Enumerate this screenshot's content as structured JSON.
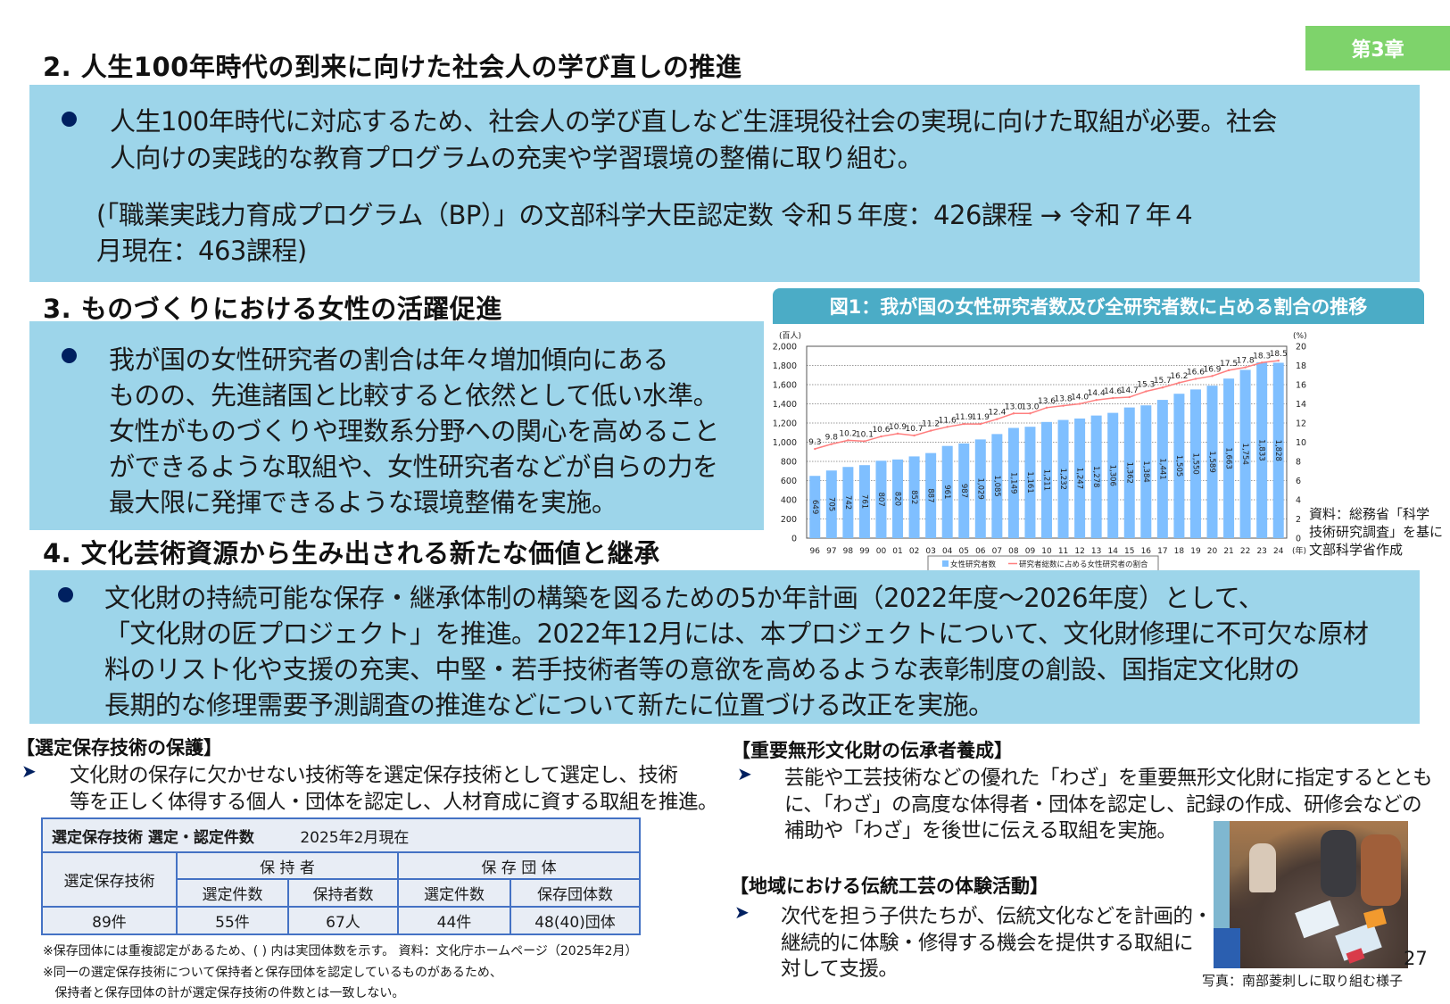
{
  "chapter_tab": "第3章",
  "section2": {
    "title": "2.  人生100年時代の到来に向けた社会人の学び直しの推進",
    "lines": [
      "人生100年時代に対応するため、社会人の学び直しなど生涯現役社会の実現に向けた取組が必要。社会",
      "人向けの実践的な教育プログラムの充実や学習環境の整備に取り組む。",
      "(「職業実践力育成プログラム（BP）」の文部科学大臣認定数   令和５年度：426課程 → 令和７年４",
      "月現在：463課程)"
    ]
  },
  "section3": {
    "title": "3.  ものづくりにおける女性の活躍促進",
    "lines": [
      "我が国の女性研究者の割合は年々増加傾向にある",
      "ものの、先進諸国と比較すると依然として低い水準。",
      "女性がものづくりや理数系分野への関心を高めること",
      "ができるような取組や、女性研究者などが自らの力を",
      "最大限に発揮できるような環境整備を実施。"
    ]
  },
  "figure": {
    "source_lines": [
      "資料：総務省「科学",
      "技術研究調査」を基に",
      "文部科学省作成"
    ]
  },
  "chart_data": {
    "type": "bar+line",
    "title": "図1：我が国の女性研究者数及び全研究者数に占める割合の推移",
    "categories": [
      "96",
      "97",
      "98",
      "99",
      "00",
      "01",
      "02",
      "03",
      "04",
      "05",
      "06",
      "07",
      "08",
      "09",
      "10",
      "11",
      "12",
      "13",
      "14",
      "15",
      "16",
      "17",
      "18",
      "19",
      "20",
      "21",
      "22",
      "23",
      "24"
    ],
    "xlabel": "(年)",
    "ylabel": "(百人)",
    "y2label": "(%)",
    "ylim": [
      0,
      2000
    ],
    "y2lim": [
      0,
      20
    ],
    "yticks": [
      "0",
      "200",
      "400",
      "600",
      "800",
      "1,000",
      "1,200",
      "1,400",
      "1,600",
      "1,800",
      "2,000"
    ],
    "y2ticks": [
      "0",
      "2",
      "4",
      "6",
      "8",
      "10",
      "12",
      "14",
      "16",
      "18",
      "20"
    ],
    "grid": true,
    "legend": "bottom",
    "series": [
      {
        "name": "女性研究者数",
        "type": "bar",
        "axis": "left",
        "color": "#7fbfff",
        "values": [
          649,
          705,
          742,
          761,
          807,
          820,
          852,
          887,
          961,
          987,
          1029,
          1085,
          1149,
          1161,
          1211,
          1232,
          1247,
          1278,
          1306,
          1362,
          1384,
          1441,
          1505,
          1550,
          1589,
          1663,
          1754,
          1833,
          1828
        ],
        "labels": [
          "649",
          "705",
          "742",
          "761",
          "807",
          "820",
          "852",
          "887",
          "961",
          "987",
          "1,029",
          "1,085",
          "1,149",
          "1,161",
          "1,211",
          "1,232",
          "1,247",
          "1,278",
          "1,306",
          "1,362",
          "1,384",
          "1,441",
          "1,505",
          "1,550",
          "1,589",
          "1,663",
          "1,754",
          "1,833",
          "1,828"
        ]
      },
      {
        "name": "研究者総数に占める女性研究者の割合",
        "type": "line",
        "axis": "right",
        "color": "#ff7f7f",
        "values": [
          9.3,
          9.8,
          10.2,
          10.1,
          10.6,
          10.9,
          10.7,
          11.2,
          11.6,
          11.9,
          11.9,
          12.4,
          13.0,
          13.0,
          13.6,
          13.8,
          14.0,
          14.4,
          14.6,
          14.7,
          15.3,
          15.7,
          16.2,
          16.6,
          16.9,
          17.5,
          17.8,
          18.3,
          18.5
        ]
      }
    ]
  },
  "section4": {
    "title": "4.  文化芸術資源から生み出される新たな価値と継承",
    "lines": [
      "文化財の持続可能な保存・継承体制の構築を図るための5か年計画（2022年度～2026年度）として、",
      "「文化財の匠プロジェクト」を推進。2022年12月には、本プロジェクトについて、文化財修理に不可欠な原材",
      "料のリスト化や支援の充実、中堅・若手技術者等の意欲を高めるような表彰制度の創設、国指定文化財の",
      "長期的な修理需要予測調査の推進などについて新たに位置づける改正を実施。"
    ]
  },
  "selected_tech": {
    "heading": "【選定保存技術の保護】",
    "lines": [
      "文化財の保存に欠かせない技術等を選定保存技術として選定し、技術",
      "等を正しく体得する個人・団体を認定し、人材育成に資する取組を推進。"
    ],
    "table": {
      "caption": "選定保存技術  選定・認定件数",
      "date": "2025年2月現在",
      "row_header": "選定保存技術",
      "group1": "保 持 者",
      "group2": "保 存 団 体",
      "columns": [
        "選定件数",
        "保持者数",
        "選定件数",
        "保存団体数"
      ],
      "values": [
        "89件",
        "55件",
        "67人",
        "44件",
        "48(40)団体"
      ]
    },
    "notes": [
      "※保存団体には重複認定があるため、(  ) 内は実団体数を示す。   資料：文化庁ホームページ（2025年2月）",
      "※同一の選定保存技術について保持者と保存団体を認定しているものがあるため、",
      "   保持者と保存団体の計が選定保存技術の件数とは一致しない。"
    ]
  },
  "intangible": {
    "heading": "【重要無形文化財の伝承者養成】",
    "lines": [
      "芸能や工芸技術などの優れた「わざ」を重要無形文化財に指定するととも",
      "に、「わざ」の高度な体得者・団体を認定し、記録の作成、研修会などの",
      "補助や「わざ」を後世に伝える取組を実施。"
    ]
  },
  "regional": {
    "heading": "【地域における伝統工芸の体験活動】",
    "lines": [
      "次代を担う子供たちが、伝統文化などを計画的・",
      "継続的に体験・修得する機会を提供する取組に",
      "対して支援。"
    ]
  },
  "photo_caption": "写真：南部菱刺しに取り組む様子",
  "page_number": "27",
  "colors": {
    "box": "#9dd5ea",
    "bullet": "#002060",
    "chapter_tab": "#7ed36b",
    "figure_banner": "#4bacc6",
    "table_border": "#4472c4"
  }
}
